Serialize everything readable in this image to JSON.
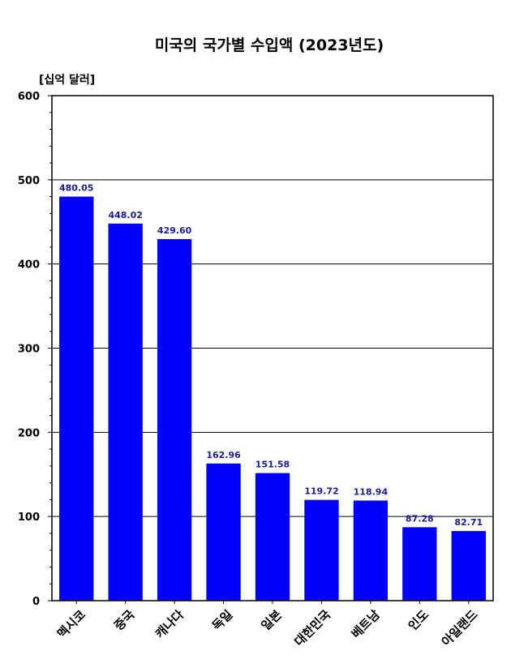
{
  "chart_data": {
    "type": "bar",
    "title": "미국의 국가별 수입액 (2023년도)",
    "ylabel": "[십억 달러]",
    "xlabel": "",
    "categories": [
      "멕시코",
      "중국",
      "캐나다",
      "독일",
      "일본",
      "대한민국",
      "베트남",
      "인도",
      "아일랜드"
    ],
    "values": [
      480.05,
      448.02,
      429.6,
      162.96,
      151.58,
      119.72,
      118.94,
      87.28,
      82.71
    ],
    "value_labels": [
      "480.05",
      "448.02",
      "429.60",
      "162.96",
      "151.58",
      "119.72",
      "118.94",
      "87.28",
      "82.71"
    ],
    "ylim": [
      0,
      600
    ],
    "yticks": [
      0,
      100,
      200,
      300,
      400,
      500,
      600
    ],
    "grid": true,
    "bar_color": "#0000ff",
    "label_color": "#1a1aa0"
  }
}
